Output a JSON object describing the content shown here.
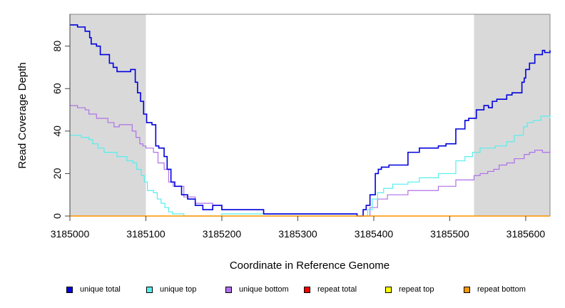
{
  "chart_data": {
    "type": "line",
    "title": "",
    "xlabel": "Coordinate in Reference Genome",
    "ylabel": "Read Coverage Depth",
    "xlim": [
      3185000,
      3185632
    ],
    "ylim": [
      0,
      95
    ],
    "x_ticks": [
      3185000,
      3185100,
      3185200,
      3185300,
      3185400,
      3185500,
      3185600
    ],
    "x_tick_labels": [
      "3185000",
      "3185100",
      "3185200",
      "3185300",
      "3185400",
      "3185500",
      "3185600"
    ],
    "y_ticks": [
      0,
      20,
      40,
      60,
      80
    ],
    "y_tick_labels": [
      "0",
      "20",
      "40",
      "60",
      "80"
    ],
    "grid": false,
    "legend_position": "bottom",
    "shaded_regions": [
      [
        3185000,
        3185100
      ],
      [
        3185532,
        3185632
      ]
    ],
    "series": [
      {
        "name": "unique total",
        "color": "#0000dd",
        "step": true,
        "x": [
          3185000,
          3185010,
          3185020,
          3185026,
          3185028,
          3185035,
          3185040,
          3185052,
          3185057,
          3185062,
          3185080,
          3185086,
          3185089,
          3185093,
          3185097,
          3185101,
          3185108,
          3185113,
          3185117,
          3185124,
          3185128,
          3185133,
          3185138,
          3185147,
          3185155,
          3185165,
          3185175,
          3185188,
          3185200,
          3185255,
          3185378,
          3185386,
          3185390,
          3185395,
          3185402,
          3185406,
          3185410,
          3185420,
          3185445,
          3185460,
          3185485,
          3185495,
          3185508,
          3185520,
          3185525,
          3185535,
          3185545,
          3185551,
          3185556,
          3185562,
          3185575,
          3185582,
          3185595,
          3185598,
          3185600,
          3185605,
          3185612,
          3185622,
          3185625,
          3185632
        ],
        "y": [
          90,
          89,
          87,
          84,
          81,
          80,
          76,
          72,
          70,
          68,
          69,
          63,
          58,
          54,
          48,
          44,
          43,
          33,
          32,
          28,
          22,
          16,
          14,
          10,
          8,
          5,
          3,
          5,
          3,
          1,
          0,
          3,
          5,
          10,
          20,
          22,
          23,
          24,
          30,
          32,
          33,
          34,
          41,
          45,
          46,
          50,
          52,
          51,
          54,
          55,
          57,
          58,
          63,
          65,
          69,
          72,
          76,
          78,
          77,
          78
        ]
      },
      {
        "name": "unique top",
        "color": "#55eeee",
        "step": true,
        "x": [
          3185000,
          3185015,
          3185025,
          3185030,
          3185037,
          3185045,
          3185062,
          3185075,
          3185083,
          3185088,
          3185094,
          3185098,
          3185102,
          3185110,
          3185115,
          3185120,
          3185125,
          3185130,
          3185135,
          3185150,
          3185200,
          3185255,
          3185378,
          3185392,
          3185398,
          3185405,
          3185413,
          3185425,
          3185445,
          3185460,
          3185485,
          3185508,
          3185520,
          3185530,
          3185540,
          3185560,
          3185575,
          3185585,
          3185597,
          3185602,
          3185610,
          3185620,
          3185632
        ],
        "y": [
          38,
          37,
          36,
          34,
          32,
          30,
          28,
          26,
          25,
          22,
          19,
          16,
          12,
          11,
          8,
          6,
          4,
          2,
          1,
          0,
          1,
          1,
          0,
          3,
          8,
          11,
          13,
          15,
          16,
          18,
          20,
          26,
          28,
          30,
          32,
          33,
          35,
          38,
          42,
          44,
          45,
          47,
          46
        ]
      },
      {
        "name": "unique bottom",
        "color": "#b070e8",
        "step": true,
        "x": [
          3185000,
          3185010,
          3185020,
          3185025,
          3185035,
          3185050,
          3185058,
          3185065,
          3185082,
          3185087,
          3185092,
          3185096,
          3185100,
          3185110,
          3185116,
          3185124,
          3185130,
          3185136,
          3185150,
          3185165,
          3185188,
          3185200,
          3185255,
          3185378,
          3185395,
          3185405,
          3185418,
          3185445,
          3185485,
          3185508,
          3185532,
          3185540,
          3185550,
          3185558,
          3185565,
          3185575,
          3185585,
          3185598,
          3185605,
          3185612,
          3185622,
          3185632
        ],
        "y": [
          52,
          51,
          50,
          48,
          46,
          44,
          42,
          43,
          40,
          37,
          34,
          33,
          32,
          30,
          25,
          22,
          16,
          14,
          9,
          6,
          5,
          3,
          1,
          0,
          4,
          8,
          10,
          12,
          14,
          17,
          19,
          20,
          21,
          22,
          24,
          25,
          27,
          29,
          30,
          31,
          30,
          31
        ]
      },
      {
        "name": "repeat total",
        "color": "#ff0000",
        "step": true,
        "x": [
          3185000,
          3185632
        ],
        "y": [
          0,
          0
        ]
      },
      {
        "name": "repeat top",
        "color": "#ffff00",
        "step": true,
        "x": [
          3185000,
          3185632
        ],
        "y": [
          0,
          0
        ]
      },
      {
        "name": "repeat bottom",
        "color": "#ff9900",
        "step": true,
        "x": [
          3185000,
          3185632
        ],
        "y": [
          0,
          0
        ]
      }
    ]
  }
}
